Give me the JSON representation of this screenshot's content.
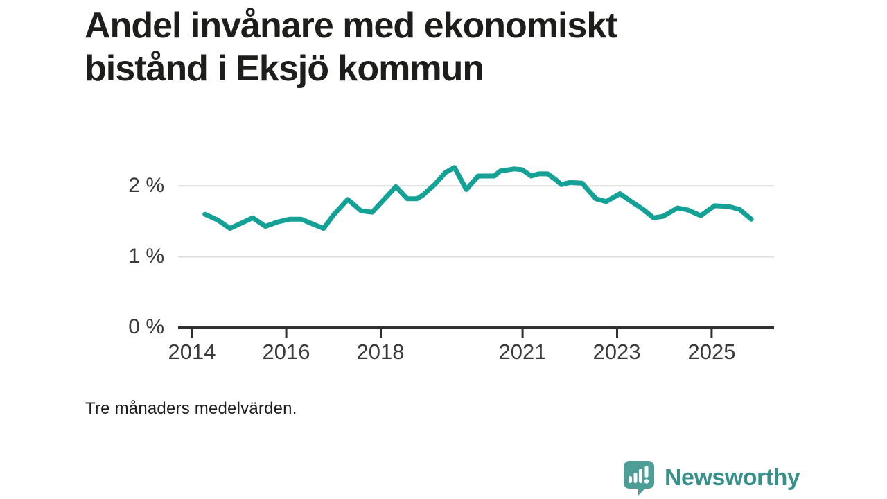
{
  "header": {
    "title_line1": "Andel invånare med ekonomiskt",
    "title_line2": "bistånd i Eksjö kommun"
  },
  "footnote": "Tre månaders medelvärden.",
  "branding": {
    "logo_text": "Newsworthy",
    "logo_mark_color": "#4d9e97",
    "logo_text_color": "#38908a"
  },
  "colors": {
    "line": "#14a196",
    "grid": "#dcdcdc",
    "axis": "#2f2f2f",
    "tick_text": "#3a3a3a",
    "title_text": "#1d1d1b"
  },
  "chart_data": {
    "type": "line",
    "title": "Andel invånare med ekonomiskt bistånd i Eksjö kommun",
    "note": "Tre månaders medelvärden.",
    "xlabel": "",
    "ylabel": "",
    "legend": "none",
    "grid": "horizontal-only",
    "x_range": [
      2013.75,
      2026.3
    ],
    "ylim": [
      0,
      2.55
    ],
    "y_ticks": [
      {
        "value": 0,
        "label": "0 %"
      },
      {
        "value": 1,
        "label": "1 %"
      },
      {
        "value": 2,
        "label": "2 %"
      }
    ],
    "x_ticks": [
      {
        "value": 2014,
        "label": "2014"
      },
      {
        "value": 2016,
        "label": "2016"
      },
      {
        "value": 2018,
        "label": "2018"
      },
      {
        "value": 2021,
        "label": "2021"
      },
      {
        "value": 2023,
        "label": "2023"
      },
      {
        "value": 2025,
        "label": "2025"
      }
    ],
    "series": [
      {
        "name": "Andel invånare med ekonomiskt bistånd, Eksjö kommun",
        "unit": "%",
        "color": "#14a196",
        "points": [
          [
            2014.28,
            1.6
          ],
          [
            2014.55,
            1.52
          ],
          [
            2014.81,
            1.4
          ],
          [
            2015.29,
            1.55
          ],
          [
            2015.56,
            1.43
          ],
          [
            2015.81,
            1.49
          ],
          [
            2016.07,
            1.53
          ],
          [
            2016.32,
            1.53
          ],
          [
            2016.57,
            1.46
          ],
          [
            2016.79,
            1.4
          ],
          [
            2017.0,
            1.59
          ],
          [
            2017.3,
            1.81
          ],
          [
            2017.58,
            1.65
          ],
          [
            2017.82,
            1.63
          ],
          [
            2018.32,
            1.99
          ],
          [
            2018.56,
            1.82
          ],
          [
            2018.77,
            1.82
          ],
          [
            2018.89,
            1.87
          ],
          [
            2019.14,
            2.02
          ],
          [
            2019.37,
            2.19
          ],
          [
            2019.56,
            2.26
          ],
          [
            2019.81,
            1.95
          ],
          [
            2020.06,
            2.14
          ],
          [
            2020.4,
            2.14
          ],
          [
            2020.53,
            2.21
          ],
          [
            2020.82,
            2.24
          ],
          [
            2020.99,
            2.23
          ],
          [
            2021.18,
            2.14
          ],
          [
            2021.34,
            2.17
          ],
          [
            2021.53,
            2.17
          ],
          [
            2021.7,
            2.09
          ],
          [
            2021.82,
            2.02
          ],
          [
            2022.01,
            2.05
          ],
          [
            2022.26,
            2.04
          ],
          [
            2022.55,
            1.82
          ],
          [
            2022.77,
            1.78
          ],
          [
            2023.06,
            1.89
          ],
          [
            2023.28,
            1.79
          ],
          [
            2023.55,
            1.67
          ],
          [
            2023.77,
            1.55
          ],
          [
            2023.97,
            1.57
          ],
          [
            2024.28,
            1.69
          ],
          [
            2024.5,
            1.66
          ],
          [
            2024.77,
            1.58
          ],
          [
            2025.06,
            1.72
          ],
          [
            2025.35,
            1.71
          ],
          [
            2025.59,
            1.67
          ],
          [
            2025.84,
            1.53
          ]
        ]
      }
    ]
  }
}
